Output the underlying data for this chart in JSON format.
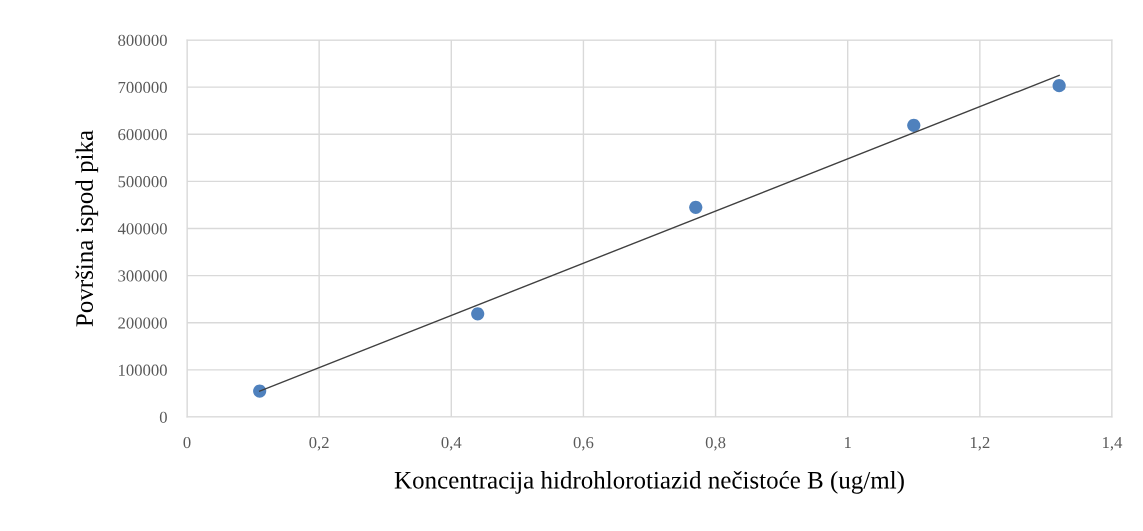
{
  "chart_data": {
    "type": "scatter",
    "xlabel": "Koncentracija hidrohlorotiazid nečistoće B (ug/ml)",
    "ylabel": "Površina ispod pika",
    "x": [
      0.11,
      0.44,
      0.77,
      1.1,
      1.32
    ],
    "series": [
      {
        "color": "#4f81bd",
        "marker": "circle",
        "values": [
          55000,
          219000,
          445000,
          619000,
          703000
        ]
      },
      {
        "type": "line",
        "color": "#404040",
        "x": [
          0.11,
          1.32
        ],
        "values": [
          55000,
          725000
        ]
      }
    ],
    "xlim": [
      0,
      1.4
    ],
    "xticks": [
      {
        "value": 0,
        "label": "0"
      },
      {
        "value": 0.2,
        "label": "0,2"
      },
      {
        "value": 0.4,
        "label": "0,4"
      },
      {
        "value": 0.6,
        "label": "0,6"
      },
      {
        "value": 0.8,
        "label": "0,8"
      },
      {
        "value": 1,
        "label": "1"
      },
      {
        "value": 1.2,
        "label": "1,2"
      },
      {
        "value": 1.4,
        "label": "1,4"
      }
    ],
    "ylim": [
      0,
      800000
    ],
    "yticks": [
      0,
      100000,
      200000,
      300000,
      400000,
      500000,
      600000,
      700000,
      800000
    ],
    "grid": true
  }
}
